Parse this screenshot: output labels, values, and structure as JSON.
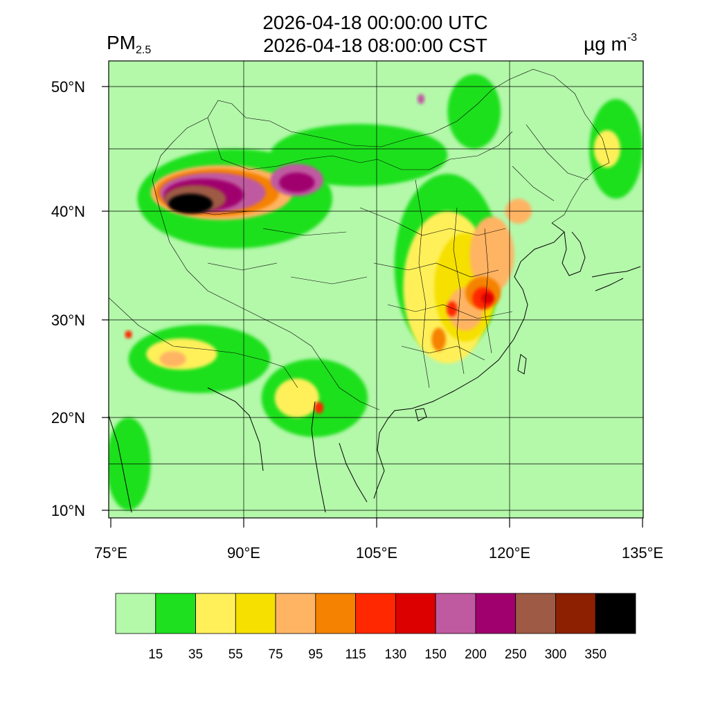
{
  "header": {
    "title_utc": "2026-04-18 00:00:00 UTC",
    "title_cst": "2026-04-18 08:00:00 CST",
    "variable_main": "PM",
    "variable_sub": "2.5",
    "unit_main": "µg m",
    "unit_sup": "-3"
  },
  "axes": {
    "lat_labels": [
      {
        "text": "50°N",
        "lat": 50
      },
      {
        "text": "40°N",
        "lat": 40
      },
      {
        "text": "30°N",
        "lat": 30
      },
      {
        "text": "20°N",
        "lat": 20
      },
      {
        "text": "10°N",
        "lat": 10
      }
    ],
    "lon_labels": [
      {
        "text": "75°E",
        "lon": 75
      },
      {
        "text": "90°E",
        "lon": 90
      },
      {
        "text": "105°E",
        "lon": 105
      },
      {
        "text": "120°E",
        "lon": 120
      },
      {
        "text": "135°E",
        "lon": 135
      }
    ]
  },
  "colorbar": {
    "colors": [
      "#b4f8aa",
      "#1ee01e",
      "#fff05a",
      "#f5e000",
      "#ffb464",
      "#f58200",
      "#ff2800",
      "#dc0000",
      "#c05aa0",
      "#a0006e",
      "#9e5a44",
      "#8c2000",
      "#000000"
    ],
    "labels": [
      "15",
      "35",
      "55",
      "75",
      "95",
      "115",
      "130",
      "150",
      "200",
      "250",
      "300",
      "350"
    ]
  },
  "map": {
    "background": "#b4f8aa",
    "pollution_regions": [
      {
        "level": 1,
        "lat": 35,
        "lon": 113,
        "rlat": 8,
        "rlon": 6
      },
      {
        "level": 1,
        "lat": 44.5,
        "lon": 103,
        "rlat": 2.5,
        "rlon": 10
      },
      {
        "level": 1,
        "lat": 41,
        "lon": 89,
        "rlat": 4,
        "rlon": 11
      },
      {
        "level": 1,
        "lat": 26,
        "lon": 85,
        "rlat": 3.5,
        "rlon": 8
      },
      {
        "level": 1,
        "lat": 22,
        "lon": 98,
        "rlat": 4,
        "rlon": 6
      },
      {
        "level": 1,
        "lat": 45,
        "lon": 132,
        "rlat": 4,
        "rlon": 3
      },
      {
        "level": 1,
        "lat": 48,
        "lon": 116,
        "rlat": 3,
        "rlon": 3
      },
      {
        "level": 1,
        "lat": 15,
        "lon": 77,
        "rlat": 5,
        "rlon": 2.5
      },
      {
        "level": 2,
        "lat": 33,
        "lon": 113,
        "rlat": 7,
        "rlon": 5
      },
      {
        "level": 2,
        "lat": 26.5,
        "lon": 83,
        "rlat": 1.6,
        "rlon": 4
      },
      {
        "level": 2,
        "lat": 22,
        "lon": 96,
        "rlat": 2,
        "rlon": 2.5
      },
      {
        "level": 2,
        "lat": 45,
        "lon": 131,
        "rlat": 1.5,
        "rlon": 1.5
      },
      {
        "level": 3,
        "lat": 33,
        "lon": 115,
        "rlat": 5,
        "rlon": 3.5
      },
      {
        "level": 4,
        "lat": 36,
        "lon": 118,
        "rlat": 3.5,
        "rlon": 2.5
      },
      {
        "level": 4,
        "lat": 31,
        "lon": 115,
        "rlat": 2,
        "rlon": 2
      },
      {
        "level": 4,
        "lat": 40,
        "lon": 121,
        "rlat": 1,
        "rlon": 1.5
      },
      {
        "level": 4,
        "lat": 26,
        "lon": 82,
        "rlat": 0.8,
        "rlon": 1.5
      },
      {
        "level": 5,
        "lat": 32.5,
        "lon": 117,
        "rlat": 1.5,
        "rlon": 2
      },
      {
        "level": 5,
        "lat": 28,
        "lon": 112,
        "rlat": 1.2,
        "rlon": 0.8
      },
      {
        "level": 6,
        "lat": 32,
        "lon": 117,
        "rlat": 1,
        "rlon": 1.2
      },
      {
        "level": 6,
        "lat": 31,
        "lon": 113.5,
        "rlat": 0.7,
        "rlon": 0.6
      },
      {
        "level": 6,
        "lat": 21,
        "lon": 98.5,
        "rlat": 0.6,
        "rlon": 0.5
      },
      {
        "level": 6,
        "lat": 28.5,
        "lon": 77,
        "rlat": 0.4,
        "rlon": 0.4
      },
      {
        "level": 7,
        "lat": 32,
        "lon": 117.5,
        "rlat": 0.5,
        "rlon": 0.7
      },
      {
        "level": 4,
        "lat": 41.5,
        "lon": 87.5,
        "rlat": 2.2,
        "rlon": 8
      },
      {
        "level": 5,
        "lat": 41.5,
        "lon": 87,
        "rlat": 1.9,
        "rlon": 7
      },
      {
        "level": 8,
        "lat": 41.5,
        "lon": 86.5,
        "rlat": 1.6,
        "rlon": 6
      },
      {
        "level": 9,
        "lat": 41.3,
        "lon": 85.5,
        "rlat": 1.3,
        "rlon": 4.5
      },
      {
        "level": 10,
        "lat": 41,
        "lon": 84.5,
        "rlat": 1.1,
        "rlon": 3.5
      },
      {
        "level": 12,
        "lat": 40.6,
        "lon": 84,
        "rlat": 0.8,
        "rlon": 2.5
      },
      {
        "level": 8,
        "lat": 42.5,
        "lon": 96,
        "rlat": 1.3,
        "rlon": 3
      },
      {
        "level": 9,
        "lat": 42.3,
        "lon": 96,
        "rlat": 0.8,
        "rlon": 2
      },
      {
        "level": 8,
        "lat": 49,
        "lon": 110,
        "rlat": 0.4,
        "rlon": 0.4
      }
    ]
  }
}
